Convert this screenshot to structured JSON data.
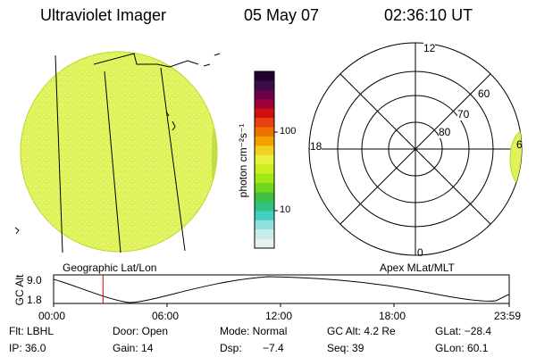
{
  "header": {
    "instrument": "Ultraviolet Imager",
    "date": "05 May 07",
    "time": "02:36:10 UT"
  },
  "colorbar": {
    "unit_label": "photon cm⁻²s⁻¹",
    "tick_100": "100",
    "tick_10": "10",
    "colors": [
      "#200030",
      "#3a0a4a",
      "#6a004a",
      "#a0003a",
      "#d01010",
      "#e84010",
      "#f07000",
      "#f4a000",
      "#f0d020",
      "#e8f040",
      "#c8f020",
      "#a0e818",
      "#70d820",
      "#40c040",
      "#30c080",
      "#40d0c0",
      "#90e0e0",
      "#c8ecec",
      "#e8f0f0"
    ]
  },
  "left_panel": {
    "caption": "Geographic Lat/Lon",
    "disk_color": "#e0f25a"
  },
  "right_panel": {
    "caption": "Apex MLat/MLT",
    "mlt_top": "12",
    "mlt_left": "18",
    "mlt_bottom": "0",
    "mlt_right": "6",
    "lat_60": "60",
    "lat_70": "70",
    "lat_80": "80"
  },
  "altitude_plot": {
    "axis_label": "GC Alt",
    "y_max": "9.0",
    "y_min": "1.8",
    "x_ticks": [
      "00:00",
      "06:00",
      "12:00",
      "18:00",
      "23:59"
    ],
    "marker_color": "#d00000",
    "marker_time_hours": 2.6
  },
  "info": {
    "flt": "Flt: LBHL",
    "door": "Door: Open",
    "mode": "Mode: Normal",
    "gc_alt": "GC Alt: 4.2 Re",
    "glat": "GLat: −28.4",
    "ip": "IP: 36.0",
    "gain": "Gain: 14",
    "dsp": "Dsp:",
    "dsp_value": "−7.4",
    "seq": "Seq: 39",
    "glon": "GLon: 60.1"
  }
}
